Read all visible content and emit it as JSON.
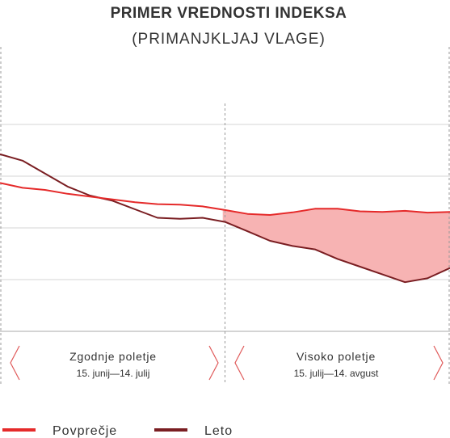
{
  "chart_data": {
    "type": "line",
    "title": "PRIMER VREDNOSTI INDEKSA",
    "subtitle": "(PRIMANJKLJAJ VLAGE)",
    "x_range": [
      0,
      20
    ],
    "ylim": [
      0,
      100
    ],
    "grid": true,
    "series": [
      {
        "name": "Povprečje",
        "color": "#e52a2a",
        "x": [
          0,
          1,
          2,
          3,
          4,
          5,
          6,
          7,
          8,
          9,
          10,
          11,
          12,
          13,
          14,
          15,
          16,
          17,
          18,
          19,
          20
        ],
        "values": [
          57.4,
          55.5,
          54.7,
          53.2,
          52.1,
          51.0,
          49.9,
          49.2,
          49.0,
          48.3,
          46.9,
          45.4,
          45.0,
          46.0,
          47.4,
          47.4,
          46.4,
          46.2,
          46.6,
          45.9,
          46.2
        ]
      },
      {
        "name": "Leto",
        "color": "#7a1e22",
        "x": [
          0,
          1,
          2,
          3,
          4,
          5,
          6,
          7,
          8,
          9,
          10,
          11,
          12,
          13,
          14,
          15,
          16,
          17,
          18,
          19,
          20
        ],
        "values": [
          68.5,
          66.0,
          61.0,
          56.0,
          52.5,
          50.5,
          47.2,
          43.9,
          43.5,
          43.9,
          42.3,
          38.7,
          35.0,
          33.0,
          31.7,
          28.0,
          25.0,
          22.0,
          19.0,
          20.5,
          24.5
        ]
      }
    ],
    "periods": [
      {
        "name": "Zgodnje poletje",
        "range": "15. junij—14. julij"
      },
      {
        "name": "Visoko poletje",
        "range": "15. julij—14. avgust"
      }
    ],
    "colors": {
      "shading": "#f7b3b3",
      "grid": "#d6d6d6",
      "divider": "#999999",
      "chevron": "#e05a5a"
    },
    "legend": {
      "placement": "bottom-left"
    }
  }
}
